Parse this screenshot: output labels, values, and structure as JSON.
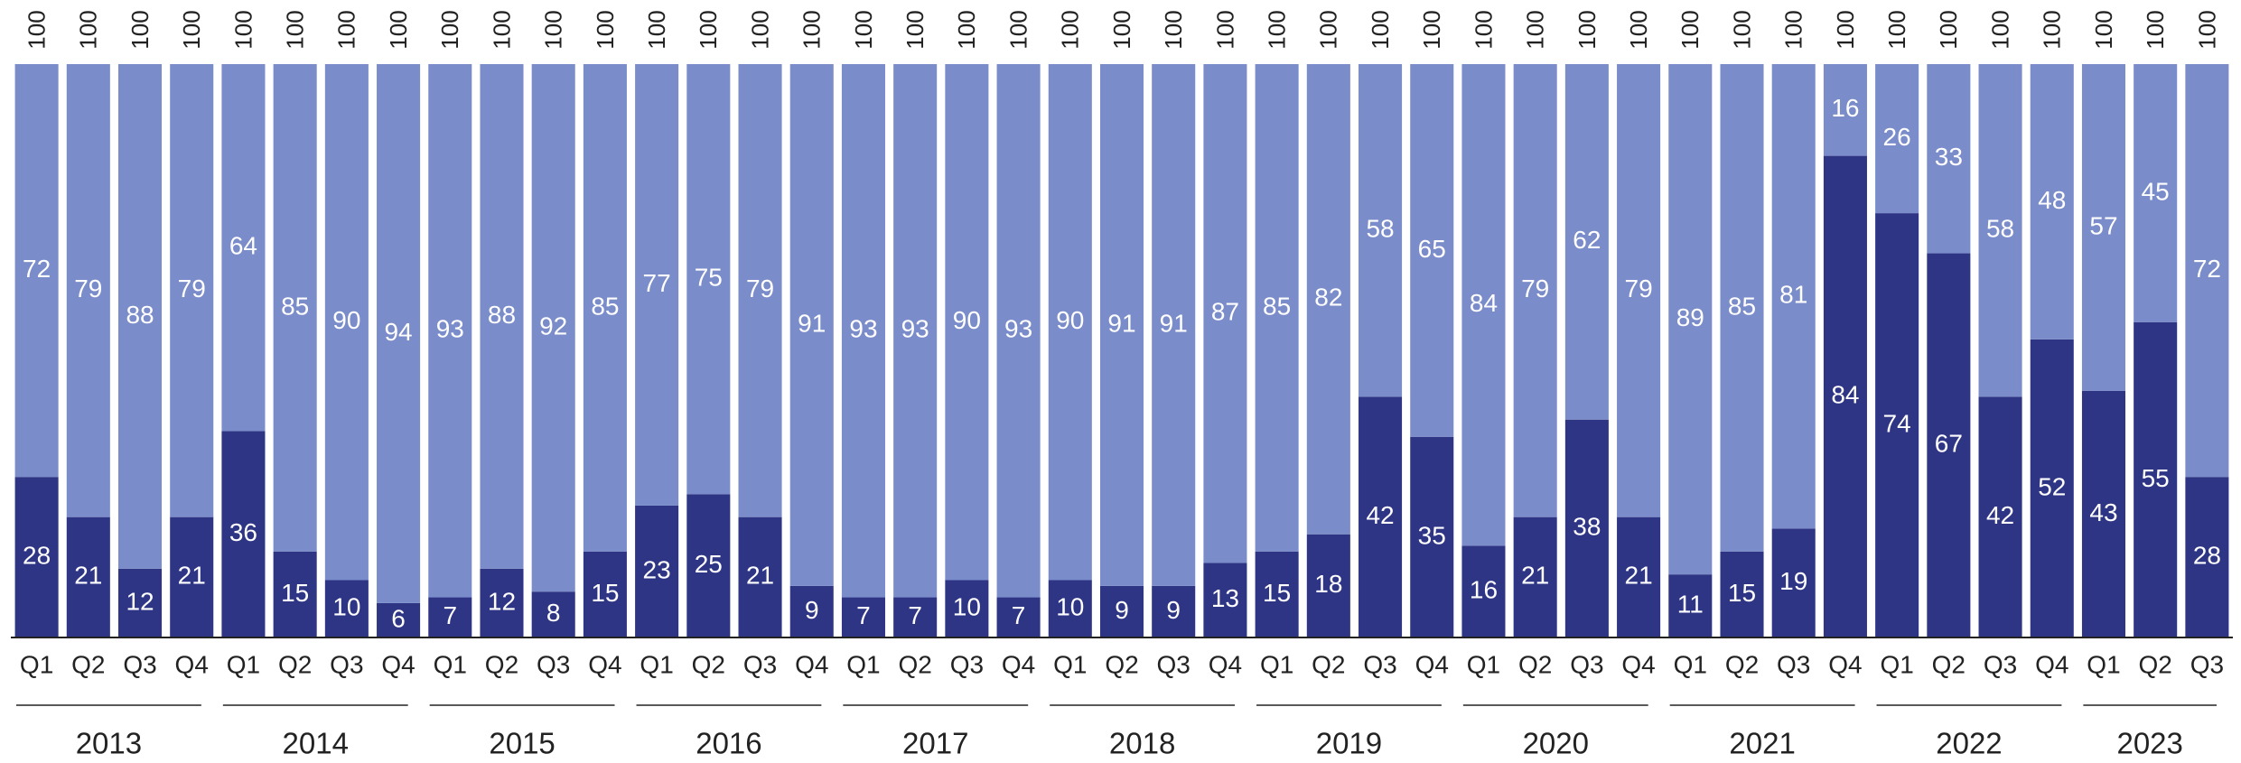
{
  "chart_data": {
    "type": "stacked_bar",
    "groups": [
      {
        "name": "2013",
        "categories": [
          "Q1",
          "Q2",
          "Q3",
          "Q4"
        ]
      },
      {
        "name": "2014",
        "categories": [
          "Q1",
          "Q2",
          "Q3",
          "Q4"
        ]
      },
      {
        "name": "2015",
        "categories": [
          "Q1",
          "Q2",
          "Q3",
          "Q4"
        ]
      },
      {
        "name": "2016",
        "categories": [
          "Q1",
          "Q2",
          "Q3",
          "Q4"
        ]
      },
      {
        "name": "2017",
        "categories": [
          "Q1",
          "Q2",
          "Q3",
          "Q4"
        ]
      },
      {
        "name": "2018",
        "categories": [
          "Q1",
          "Q2",
          "Q3",
          "Q4"
        ]
      },
      {
        "name": "2019",
        "categories": [
          "Q1",
          "Q2",
          "Q3",
          "Q4"
        ]
      },
      {
        "name": "2020",
        "categories": [
          "Q1",
          "Q2",
          "Q3",
          "Q4"
        ]
      },
      {
        "name": "2021",
        "categories": [
          "Q1",
          "Q2",
          "Q3",
          "Q4"
        ]
      },
      {
        "name": "2022",
        "categories": [
          "Q1",
          "Q2",
          "Q3",
          "Q4"
        ]
      },
      {
        "name": "2023",
        "categories": [
          "Q1",
          "Q2",
          "Q3"
        ]
      }
    ],
    "series": [
      {
        "color": "#2e3585",
        "values": [
          28,
          21,
          12,
          21,
          36,
          15,
          10,
          6,
          7,
          12,
          8,
          15,
          23,
          25,
          21,
          9,
          7,
          7,
          10,
          7,
          10,
          9,
          9,
          13,
          15,
          18,
          42,
          35,
          16,
          21,
          38,
          21,
          11,
          15,
          19,
          84,
          74,
          67,
          42,
          52,
          43,
          55,
          28
        ]
      },
      {
        "color": "#7a8cc9",
        "values": [
          72,
          79,
          88,
          79,
          64,
          85,
          90,
          94,
          93,
          88,
          92,
          85,
          77,
          75,
          79,
          91,
          93,
          93,
          90,
          93,
          90,
          91,
          91,
          87,
          85,
          82,
          58,
          65,
          84,
          79,
          62,
          79,
          89,
          85,
          81,
          16,
          26,
          33,
          58,
          48,
          57,
          45,
          72
        ]
      }
    ],
    "totals": [
      100,
      100,
      100,
      100,
      100,
      100,
      100,
      100,
      100,
      100,
      100,
      100,
      100,
      100,
      100,
      100,
      100,
      100,
      100,
      100,
      100,
      100,
      100,
      100,
      100,
      100,
      100,
      100,
      100,
      100,
      100,
      100,
      100,
      100,
      100,
      100,
      100,
      100,
      100,
      100,
      100,
      100,
      100
    ],
    "ylim": [
      0,
      100
    ]
  }
}
